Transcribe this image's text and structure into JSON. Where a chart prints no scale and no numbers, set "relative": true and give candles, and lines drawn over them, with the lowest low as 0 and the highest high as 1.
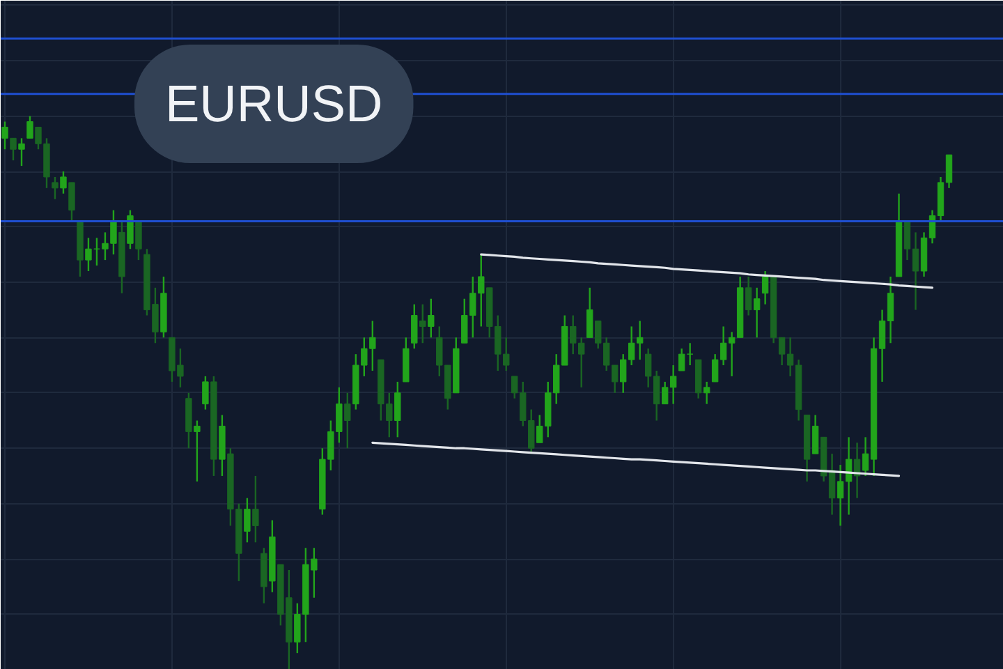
{
  "chart_data": {
    "type": "candlestick",
    "title": "EURUSD",
    "relative": true,
    "grid": true,
    "categories": [
      null,
      null,
      null,
      null,
      null,
      null,
      null,
      null,
      null,
      null,
      null,
      null,
      null,
      null,
      null,
      null,
      null,
      null,
      null,
      null,
      null,
      null,
      null,
      null,
      null,
      null,
      null,
      null,
      null,
      null,
      null,
      null,
      null,
      null,
      null,
      null,
      null,
      null,
      null,
      null,
      null,
      null,
      null,
      null,
      null,
      null,
      null,
      null,
      null,
      null,
      null,
      null,
      null,
      null,
      null,
      null,
      null,
      null,
      null,
      null,
      null,
      null,
      null,
      null,
      null,
      null,
      null,
      null,
      null,
      null,
      null,
      null,
      null,
      null,
      null,
      null,
      null,
      null,
      null,
      null,
      null,
      null,
      null,
      null,
      null,
      null,
      null,
      null,
      null,
      null,
      null,
      null,
      null,
      null,
      null,
      null,
      null,
      null,
      null,
      null,
      null,
      null,
      null,
      null,
      null,
      null,
      null,
      null,
      null,
      null,
      null,
      null,
      null,
      null
    ],
    "series": [
      {
        "colors": [
          "#22a51b",
          "#1a6623",
          "#22a51b",
          "#22a51b",
          "#1a6623",
          "#1a6623",
          "#1a6623",
          "#22a51b",
          "#1a6623",
          "#1a6623",
          "#22a51b",
          "#22a51b",
          "#22a51b",
          "#22a51b",
          "#1a6623",
          "#22a51b",
          "#1a6623",
          "#1a6623",
          "#1a6623",
          "#22a51b",
          "#1a6623",
          "#1a6623",
          "#1a6623",
          "#22a51b",
          "#22a51b",
          "#1a6623",
          "#22a51b",
          "#1a6623",
          "#1a6623",
          "#22a51b",
          "#1a6623",
          "#1a6623",
          "#22a51b",
          "#1a6623",
          "#1a6623",
          "#22a51b",
          "#22a51b",
          "#22a51b",
          "#22a51b",
          "#22a51b",
          "#22a51b",
          "#1a6623",
          "#22a51b",
          "#22a51b",
          "#22a51b",
          "#1a6623",
          "#1a6623",
          "#22a51b",
          "#22a51b",
          "#22a51b",
          "#1a6623",
          "#22a51b",
          "#1a6623",
          "#1a6623",
          "#22a51b",
          "#22a51b",
          "#22a51b",
          "#22a51b",
          "#1a6623",
          "#1a6623",
          "#1a6623",
          "#1a6623",
          "#1a6623",
          "#1a6623",
          "#22a51b",
          "#22a51b",
          "#22a51b",
          "#22a51b",
          "#1a6623",
          "#1a6623",
          "#22a51b",
          "#1a6623",
          "#1a6623",
          "#1a6623",
          "#22a51b",
          "#22a51b",
          "#22a51b",
          "#1a6623",
          "#1a6623",
          "#22a51b",
          "#22a51b",
          "#22a51b",
          "#22a51b",
          "#1a6623",
          "#22a51b",
          "#22a51b",
          "#22a51b",
          "#22a51b",
          "#22a51b",
          "#1a6623",
          "#22a51b",
          "#22a51b",
          "#1a6623",
          "#1a6623",
          "#1a6623",
          "#1a6623",
          "#1a6623",
          "#22a51b",
          "#1a6623",
          "#1a6623",
          "#22a51b",
          "#22a51b",
          "#1a6623",
          "#22a51b",
          "#22a51b",
          "#22a51b",
          "#22a51b",
          "#22a51b",
          "#1a6623",
          "#1a6623",
          "#22a51b",
          "#22a51b",
          "#22a51b",
          "#22a51b"
        ],
        "ohlc": [
          [
            0.96,
            0.99,
            0.94,
            0.98
          ],
          [
            0.96,
            0.96,
            0.92,
            0.94
          ],
          [
            0.94,
            0.96,
            0.91,
            0.95
          ],
          [
            0.96,
            1.0,
            0.96,
            0.99
          ],
          [
            0.98,
            0.98,
            0.94,
            0.95
          ],
          [
            0.95,
            0.96,
            0.87,
            0.89
          ],
          [
            0.88,
            0.89,
            0.85,
            0.87
          ],
          [
            0.87,
            0.9,
            0.86,
            0.89
          ],
          [
            0.88,
            0.88,
            0.81,
            0.83
          ],
          [
            0.81,
            0.81,
            0.71,
            0.74
          ],
          [
            0.74,
            0.78,
            0.72,
            0.76
          ],
          [
            0.76,
            0.78,
            0.73,
            0.76
          ],
          [
            0.76,
            0.79,
            0.74,
            0.77
          ],
          [
            0.77,
            0.83,
            0.75,
            0.81
          ],
          [
            0.79,
            0.81,
            0.68,
            0.71
          ],
          [
            0.77,
            0.83,
            0.76,
            0.82
          ],
          [
            0.81,
            0.81,
            0.74,
            0.76
          ],
          [
            0.75,
            0.76,
            0.64,
            0.65
          ],
          [
            0.66,
            0.69,
            0.59,
            0.61
          ],
          [
            0.61,
            0.71,
            0.6,
            0.68
          ],
          [
            0.6,
            0.6,
            0.52,
            0.54
          ],
          [
            0.55,
            0.58,
            0.51,
            0.53
          ],
          [
            0.49,
            0.5,
            0.4,
            0.43
          ],
          [
            0.43,
            0.45,
            0.34,
            0.44
          ],
          [
            0.48,
            0.53,
            0.47,
            0.52
          ],
          [
            0.52,
            0.53,
            0.35,
            0.38
          ],
          [
            0.38,
            0.46,
            0.35,
            0.44
          ],
          [
            0.39,
            0.4,
            0.26,
            0.29
          ],
          [
            0.29,
            0.3,
            0.16,
            0.21
          ],
          [
            0.25,
            0.31,
            0.23,
            0.29
          ],
          [
            0.29,
            0.35,
            0.23,
            0.26
          ],
          [
            0.21,
            0.22,
            0.12,
            0.15
          ],
          [
            0.16,
            0.27,
            0.14,
            0.24
          ],
          [
            0.19,
            0.19,
            0.08,
            0.1
          ],
          [
            0.13,
            0.18,
            0.0,
            0.05
          ],
          [
            0.05,
            0.12,
            0.03,
            0.1
          ],
          [
            0.1,
            0.22,
            0.05,
            0.19
          ],
          [
            0.18,
            0.22,
            0.13,
            0.2
          ],
          [
            0.29,
            0.4,
            0.28,
            0.38
          ],
          [
            0.38,
            0.45,
            0.36,
            0.43
          ],
          [
            0.43,
            0.51,
            0.41,
            0.48
          ],
          [
            0.48,
            0.5,
            0.4,
            0.45
          ],
          [
            0.48,
            0.57,
            0.47,
            0.55
          ],
          [
            0.55,
            0.6,
            0.53,
            0.58
          ],
          [
            0.58,
            0.63,
            0.54,
            0.6
          ],
          [
            0.56,
            0.56,
            0.45,
            0.48
          ],
          [
            0.48,
            0.5,
            0.42,
            0.45
          ],
          [
            0.45,
            0.52,
            0.42,
            0.5
          ],
          [
            0.52,
            0.6,
            0.52,
            0.58
          ],
          [
            0.59,
            0.66,
            0.58,
            0.64
          ],
          [
            0.63,
            0.66,
            0.59,
            0.62
          ],
          [
            0.62,
            0.67,
            0.6,
            0.64
          ],
          [
            0.6,
            0.62,
            0.53,
            0.55
          ],
          [
            0.55,
            0.55,
            0.47,
            0.49
          ],
          [
            0.5,
            0.6,
            0.5,
            0.58
          ],
          [
            0.59,
            0.67,
            0.59,
            0.64
          ],
          [
            0.64,
            0.71,
            0.6,
            0.68
          ],
          [
            0.68,
            0.75,
            0.62,
            0.71
          ],
          [
            0.69,
            0.69,
            0.6,
            0.62
          ],
          [
            0.62,
            0.64,
            0.54,
            0.57
          ],
          [
            0.57,
            0.6,
            0.54,
            0.55
          ],
          [
            0.53,
            0.53,
            0.49,
            0.5
          ],
          [
            0.5,
            0.52,
            0.44,
            0.45
          ],
          [
            0.45,
            0.47,
            0.39,
            0.4
          ],
          [
            0.41,
            0.46,
            0.41,
            0.44
          ],
          [
            0.44,
            0.52,
            0.42,
            0.5
          ],
          [
            0.5,
            0.57,
            0.48,
            0.55
          ],
          [
            0.55,
            0.64,
            0.55,
            0.62
          ],
          [
            0.62,
            0.64,
            0.57,
            0.59
          ],
          [
            0.59,
            0.6,
            0.51,
            0.57
          ],
          [
            0.6,
            0.69,
            0.6,
            0.65
          ],
          [
            0.63,
            0.63,
            0.58,
            0.59
          ],
          [
            0.59,
            0.6,
            0.54,
            0.55
          ],
          [
            0.55,
            0.55,
            0.5,
            0.52
          ],
          [
            0.52,
            0.57,
            0.5,
            0.56
          ],
          [
            0.56,
            0.62,
            0.55,
            0.59
          ],
          [
            0.59,
            0.63,
            0.56,
            0.6
          ],
          [
            0.57,
            0.58,
            0.51,
            0.53
          ],
          [
            0.53,
            0.54,
            0.45,
            0.48
          ],
          [
            0.48,
            0.52,
            0.48,
            0.51
          ],
          [
            0.51,
            0.55,
            0.48,
            0.53
          ],
          [
            0.54,
            0.58,
            0.54,
            0.57
          ],
          [
            0.57,
            0.59,
            0.55,
            0.57
          ],
          [
            0.56,
            0.56,
            0.49,
            0.5
          ],
          [
            0.5,
            0.52,
            0.48,
            0.51
          ],
          [
            0.52,
            0.57,
            0.52,
            0.56
          ],
          [
            0.56,
            0.62,
            0.55,
            0.59
          ],
          [
            0.59,
            0.61,
            0.53,
            0.6
          ],
          [
            0.6,
            0.71,
            0.6,
            0.69
          ],
          [
            0.69,
            0.71,
            0.64,
            0.65
          ],
          [
            0.65,
            0.69,
            0.6,
            0.67
          ],
          [
            0.68,
            0.72,
            0.66,
            0.71
          ],
          [
            0.71,
            0.71,
            0.59,
            0.6
          ],
          [
            0.6,
            0.6,
            0.55,
            0.57
          ],
          [
            0.57,
            0.6,
            0.53,
            0.55
          ],
          [
            0.55,
            0.56,
            0.45,
            0.47
          ],
          [
            0.46,
            0.46,
            0.34,
            0.38
          ],
          [
            0.39,
            0.46,
            0.39,
            0.44
          ],
          [
            0.42,
            0.42,
            0.34,
            0.35
          ],
          [
            0.36,
            0.39,
            0.28,
            0.31
          ],
          [
            0.31,
            0.37,
            0.26,
            0.34
          ],
          [
            0.34,
            0.42,
            0.28,
            0.38
          ],
          [
            0.38,
            0.41,
            0.31,
            0.35
          ],
          [
            0.36,
            0.42,
            0.35,
            0.39
          ],
          [
            0.38,
            0.6,
            0.35,
            0.58
          ],
          [
            0.58,
            0.65,
            0.52,
            0.63
          ],
          [
            0.63,
            0.71,
            0.59,
            0.68
          ],
          [
            0.71,
            0.86,
            0.71,
            0.81
          ],
          [
            0.81,
            0.81,
            0.74,
            0.76
          ],
          [
            0.76,
            0.79,
            0.65,
            0.72
          ],
          [
            0.72,
            0.79,
            0.71,
            0.78
          ],
          [
            0.78,
            0.83,
            0.77,
            0.82
          ],
          [
            0.82,
            0.89,
            0.81,
            0.88
          ],
          [
            0.88,
            0.93,
            0.87,
            0.93
          ]
        ]
      },
      {
        "type": "line",
        "color": "#e2e5ea",
        "values": [
          null,
          null,
          null,
          null,
          null,
          null,
          null,
          null,
          null,
          null,
          null,
          null,
          null,
          null,
          null,
          null,
          null,
          null,
          null,
          null,
          null,
          null,
          null,
          null,
          null,
          null,
          null,
          null,
          null,
          null,
          null,
          null,
          null,
          null,
          null,
          null,
          null,
          null,
          null,
          null,
          null,
          null,
          null,
          null,
          null,
          null,
          null,
          null,
          null,
          null,
          null,
          null,
          null,
          null,
          null,
          null,
          null,
          0.75,
          0.749,
          0.748,
          0.747,
          0.746,
          0.744,
          0.743,
          0.742,
          0.741,
          0.74,
          0.739,
          0.738,
          0.737,
          0.736,
          0.734,
          0.733,
          0.732,
          0.731,
          0.73,
          0.729,
          0.728,
          0.727,
          0.726,
          0.724,
          0.723,
          0.722,
          0.721,
          0.72,
          0.719,
          0.718,
          0.717,
          0.716,
          0.714,
          0.713,
          0.712,
          0.711,
          0.71,
          0.709,
          0.708,
          0.707,
          0.706,
          0.704,
          0.703,
          0.702,
          0.701,
          0.7,
          0.699,
          0.698,
          0.697,
          0.696,
          0.694,
          0.693,
          0.692,
          0.691,
          0.69,
          null,
          null
        ]
      },
      {
        "type": "line",
        "color": "#e2e5ea",
        "values": [
          null,
          null,
          null,
          null,
          null,
          null,
          null,
          null,
          null,
          null,
          null,
          null,
          null,
          null,
          null,
          null,
          null,
          null,
          null,
          null,
          null,
          null,
          null,
          null,
          null,
          null,
          null,
          null,
          null,
          null,
          null,
          null,
          null,
          null,
          null,
          null,
          null,
          null,
          null,
          null,
          null,
          null,
          null,
          null,
          0.41,
          0.409,
          0.408,
          0.407,
          0.406,
          0.405,
          0.404,
          0.403,
          0.402,
          0.401,
          0.4,
          0.4,
          0.399,
          0.398,
          0.397,
          0.396,
          0.395,
          0.394,
          0.393,
          0.392,
          0.391,
          0.39,
          0.389,
          0.388,
          0.387,
          0.386,
          0.385,
          0.384,
          0.383,
          0.382,
          0.381,
          0.38,
          0.38,
          0.379,
          0.378,
          0.377,
          0.376,
          0.375,
          0.374,
          0.373,
          0.372,
          0.371,
          0.37,
          0.369,
          0.368,
          0.367,
          0.366,
          0.365,
          0.364,
          0.363,
          0.362,
          0.361,
          0.36,
          0.36,
          0.359,
          0.358,
          0.357,
          0.356,
          0.355,
          0.354,
          0.353,
          0.352,
          0.351,
          0.35,
          null,
          null,
          null,
          null,
          null,
          null
        ]
      }
    ],
    "ref_lines": [
      {
        "axis": "y",
        "value": 1.14,
        "color": "#1f4fd1"
      },
      {
        "axis": "y",
        "value": 1.04,
        "color": "#1f4fd1"
      },
      {
        "axis": "y",
        "value": 0.81,
        "color": "#1f4fd1"
      }
    ]
  }
}
